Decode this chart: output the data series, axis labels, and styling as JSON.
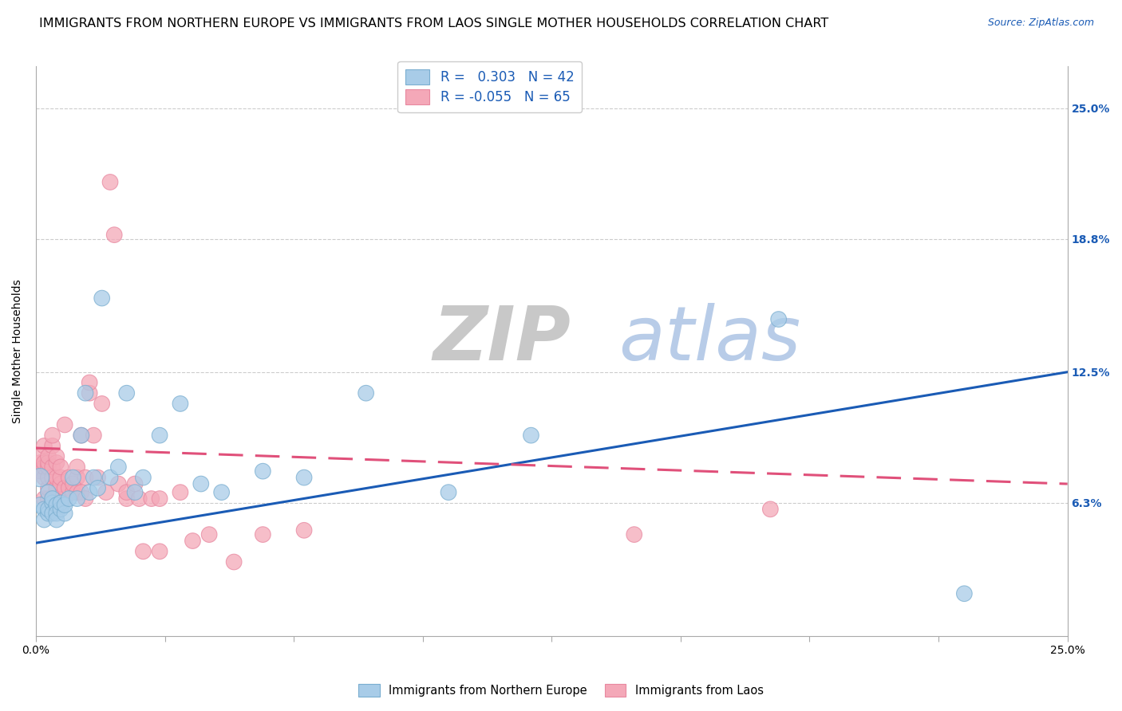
{
  "title": "IMMIGRANTS FROM NORTHERN EUROPE VS IMMIGRANTS FROM LAOS SINGLE MOTHER HOUSEHOLDS CORRELATION CHART",
  "source": "Source: ZipAtlas.com",
  "ylabel": "Single Mother Households",
  "ytick_labels": [
    "6.3%",
    "12.5%",
    "18.8%",
    "25.0%"
  ],
  "ytick_values": [
    0.063,
    0.125,
    0.188,
    0.25
  ],
  "xmin": 0.0,
  "xmax": 0.25,
  "ymin": 0.0,
  "ymax": 0.27,
  "blue_color": "#a8cce8",
  "pink_color": "#f4a8b8",
  "blue_edge_color": "#7aaed0",
  "pink_edge_color": "#e888a0",
  "blue_line_color": "#1a5bb5",
  "pink_line_color": "#e0507a",
  "watermark_zip_color": "#c8c8c8",
  "watermark_atlas_color": "#b8cce8",
  "title_fontsize": 11.5,
  "axis_label_fontsize": 10,
  "tick_fontsize": 10,
  "blue_scatter_x": [
    0.001,
    0.001,
    0.002,
    0.002,
    0.003,
    0.003,
    0.003,
    0.004,
    0.004,
    0.004,
    0.005,
    0.005,
    0.005,
    0.006,
    0.006,
    0.007,
    0.007,
    0.008,
    0.009,
    0.01,
    0.011,
    0.012,
    0.013,
    0.014,
    0.015,
    0.016,
    0.018,
    0.02,
    0.022,
    0.024,
    0.026,
    0.03,
    0.035,
    0.04,
    0.045,
    0.055,
    0.065,
    0.08,
    0.1,
    0.12,
    0.18,
    0.225
  ],
  "blue_scatter_y": [
    0.075,
    0.062,
    0.06,
    0.055,
    0.068,
    0.058,
    0.06,
    0.063,
    0.065,
    0.058,
    0.062,
    0.058,
    0.055,
    0.06,
    0.063,
    0.058,
    0.062,
    0.065,
    0.075,
    0.065,
    0.095,
    0.115,
    0.068,
    0.075,
    0.07,
    0.16,
    0.075,
    0.08,
    0.115,
    0.068,
    0.075,
    0.095,
    0.11,
    0.072,
    0.068,
    0.078,
    0.075,
    0.115,
    0.068,
    0.095,
    0.15,
    0.02
  ],
  "blue_scatter_sizes": [
    280,
    200,
    200,
    200,
    200,
    200,
    200,
    200,
    200,
    200,
    200,
    200,
    200,
    200,
    200,
    200,
    200,
    200,
    200,
    200,
    200,
    200,
    200,
    200,
    200,
    200,
    200,
    200,
    200,
    200,
    200,
    200,
    200,
    200,
    200,
    200,
    200,
    200,
    200,
    200,
    200,
    200
  ],
  "pink_scatter_x": [
    0.001,
    0.001,
    0.001,
    0.002,
    0.002,
    0.002,
    0.002,
    0.002,
    0.003,
    0.003,
    0.003,
    0.003,
    0.003,
    0.003,
    0.004,
    0.004,
    0.004,
    0.004,
    0.004,
    0.005,
    0.005,
    0.005,
    0.005,
    0.006,
    0.006,
    0.006,
    0.007,
    0.007,
    0.007,
    0.008,
    0.008,
    0.009,
    0.009,
    0.01,
    0.01,
    0.01,
    0.011,
    0.011,
    0.012,
    0.012,
    0.013,
    0.013,
    0.014,
    0.015,
    0.016,
    0.017,
    0.018,
    0.019,
    0.02,
    0.022,
    0.022,
    0.024,
    0.025,
    0.026,
    0.028,
    0.03,
    0.03,
    0.035,
    0.038,
    0.042,
    0.048,
    0.055,
    0.065,
    0.145,
    0.178
  ],
  "pink_scatter_y": [
    0.078,
    0.082,
    0.085,
    0.065,
    0.075,
    0.08,
    0.082,
    0.09,
    0.065,
    0.07,
    0.075,
    0.08,
    0.082,
    0.085,
    0.065,
    0.075,
    0.08,
    0.09,
    0.095,
    0.07,
    0.075,
    0.082,
    0.085,
    0.072,
    0.075,
    0.08,
    0.065,
    0.07,
    0.1,
    0.07,
    0.075,
    0.068,
    0.072,
    0.068,
    0.075,
    0.08,
    0.068,
    0.095,
    0.065,
    0.075,
    0.115,
    0.12,
    0.095,
    0.075,
    0.11,
    0.068,
    0.215,
    0.19,
    0.072,
    0.065,
    0.068,
    0.072,
    0.065,
    0.04,
    0.065,
    0.04,
    0.065,
    0.068,
    0.045,
    0.048,
    0.035,
    0.048,
    0.05,
    0.048,
    0.06
  ],
  "pink_scatter_sizes": [
    200,
    200,
    200,
    200,
    200,
    200,
    200,
    200,
    200,
    200,
    200,
    200,
    200,
    200,
    200,
    200,
    200,
    200,
    200,
    200,
    200,
    200,
    200,
    200,
    200,
    200,
    200,
    200,
    200,
    200,
    200,
    200,
    200,
    200,
    200,
    200,
    200,
    200,
    200,
    200,
    200,
    200,
    200,
    200,
    200,
    200,
    200,
    200,
    200,
    200,
    200,
    200,
    200,
    200,
    200,
    200,
    200,
    200,
    200,
    200,
    200,
    200,
    200,
    200,
    200
  ],
  "blue_trend_x0": 0.0,
  "blue_trend_y0": 0.044,
  "blue_trend_x1": 0.25,
  "blue_trend_y1": 0.125,
  "pink_trend_x0": 0.0,
  "pink_trend_y0": 0.089,
  "pink_trend_x1": 0.25,
  "pink_trend_y1": 0.072,
  "legend_blue_R": "0.303",
  "legend_blue_N": "42",
  "legend_pink_R": "-0.055",
  "legend_pink_N": "65",
  "xtick_positions": [
    0.0,
    0.03125,
    0.0625,
    0.09375,
    0.125,
    0.15625,
    0.1875,
    0.21875,
    0.25
  ]
}
